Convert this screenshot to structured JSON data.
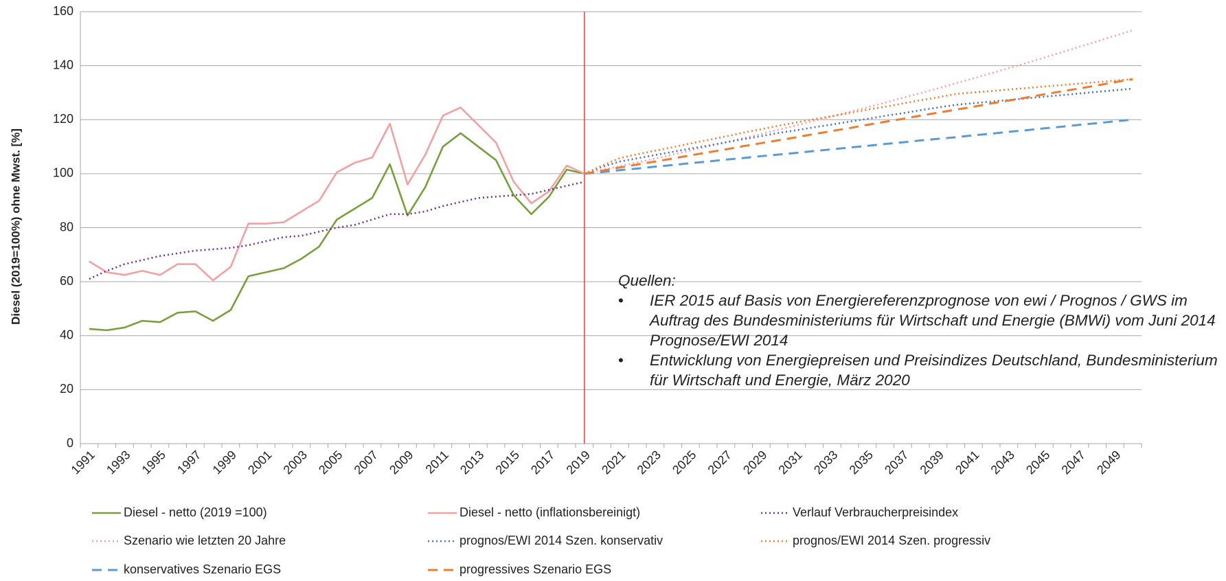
{
  "chart_data": {
    "type": "line",
    "y_label": "Diesel (2019=100%) ohne Mwst. [%]",
    "categories": [
      "1991",
      null,
      "1993",
      null,
      "1995",
      null,
      "1997",
      null,
      "1999",
      null,
      "2001",
      null,
      "2003",
      null,
      "2005",
      null,
      "2007",
      null,
      "2009",
      null,
      "2011",
      null,
      "2013",
      null,
      "2015",
      null,
      "2017",
      null,
      "2019",
      null,
      "2021",
      null,
      "2023",
      null,
      "2025",
      null,
      "2027",
      null,
      "2029",
      null,
      "2031",
      null,
      "2033",
      null,
      "2035",
      null,
      "2037",
      null,
      "2039",
      null,
      "2041",
      null,
      "2043",
      null,
      "2045",
      null,
      "2047",
      null,
      "2049",
      null
    ],
    "ylim": [
      0,
      160
    ],
    "yticks": [
      0,
      20,
      40,
      60,
      80,
      100,
      120,
      140,
      160
    ],
    "grid": true,
    "legend": "bottom",
    "marker_line": {
      "category": "2019",
      "color": "#e8413c"
    },
    "series": [
      {
        "name": "Diesel - netto (2019 =100)",
        "color": "#77a03c",
        "style": "solid",
        "values": [
          42.5,
          42,
          43,
          45.5,
          45,
          48.5,
          49,
          45.5,
          49.5,
          62,
          63.5,
          65,
          68.5,
          73,
          83,
          87,
          91,
          103.5,
          84.5,
          95,
          110,
          115,
          110,
          105,
          92,
          85,
          91.5,
          101.5,
          100,
          null,
          null,
          null,
          null,
          null,
          null,
          null,
          null,
          null,
          null,
          null,
          null,
          null,
          null,
          null,
          null,
          null,
          null,
          null,
          null,
          null,
          null,
          null,
          null,
          null,
          null,
          null,
          null,
          null,
          null,
          null
        ]
      },
      {
        "name": "Diesel - netto (inflationsbereinigt)",
        "color": "#f4a0a0",
        "style": "solid",
        "values": [
          67.5,
          63.5,
          62.5,
          64,
          62.5,
          66.5,
          66.5,
          60.5,
          65.5,
          81.5,
          81.5,
          82,
          86,
          90,
          100.5,
          104,
          106,
          118.5,
          96,
          107,
          121.5,
          124.5,
          118,
          111.5,
          97,
          89,
          93.5,
          103,
          100,
          null,
          null,
          null,
          null,
          null,
          null,
          null,
          null,
          null,
          null,
          null,
          null,
          null,
          null,
          null,
          null,
          null,
          null,
          null,
          null,
          null,
          null,
          null,
          null,
          null,
          null,
          null,
          null,
          null,
          null,
          null
        ]
      },
      {
        "name": "Verlauf Verbraucherpreisindex",
        "color": "#7030a0",
        "style": "dotted",
        "values": [
          61,
          64,
          66.5,
          68,
          69.5,
          70.5,
          71.5,
          72,
          72.5,
          73.5,
          75,
          76.5,
          77,
          78.5,
          80,
          81,
          83,
          85,
          85,
          86,
          88,
          89.5,
          91,
          91.5,
          92,
          92.5,
          94,
          95.5,
          97,
          null,
          null,
          null,
          null,
          null,
          null,
          null,
          null,
          null,
          null,
          null,
          null,
          null,
          null,
          null,
          null,
          null,
          null,
          null,
          null,
          null,
          null,
          null,
          null,
          null,
          null,
          null,
          null,
          null,
          null,
          null
        ]
      },
      {
        "name": "Szenario wie letzten 20 Jahre",
        "color": "#f4a0a0",
        "style": "dotted",
        "values": [
          null,
          null,
          null,
          null,
          null,
          null,
          null,
          null,
          null,
          null,
          null,
          null,
          null,
          null,
          null,
          null,
          null,
          null,
          null,
          null,
          null,
          null,
          null,
          null,
          null,
          null,
          null,
          null,
          100,
          101.4,
          102.8,
          104.2,
          105.6,
          107.1,
          108.6,
          110.1,
          111.6,
          113.2,
          114.7,
          116.3,
          117.9,
          119.6,
          121.2,
          122.9,
          124.6,
          126.3,
          128.1,
          129.8,
          131.6,
          133.5,
          135.3,
          137.2,
          139.1,
          141.0,
          143.0,
          145.0,
          147.0,
          149.0,
          151.1,
          153.1
        ]
      },
      {
        "name": "prognos/EWI 2014 Szen. konservativ",
        "color": "#4472c4",
        "style": "dotted",
        "values": [
          null,
          null,
          null,
          null,
          null,
          null,
          null,
          null,
          null,
          null,
          null,
          null,
          null,
          null,
          null,
          null,
          null,
          null,
          null,
          null,
          null,
          null,
          null,
          null,
          null,
          null,
          null,
          null,
          100,
          102.5,
          104.5,
          105.7,
          106.9,
          108.1,
          109.3,
          110.4,
          111.6,
          112.8,
          113.9,
          115.1,
          116.1,
          117.2,
          118.2,
          119.3,
          120.3,
          121.4,
          122.4,
          123.5,
          124.5,
          125.5,
          126.1,
          126.7,
          127.3,
          127.9,
          128.5,
          129.1,
          129.7,
          130.3,
          130.9,
          131.5
        ]
      },
      {
        "name": "prognos/EWI 2014 Szen. progressiv",
        "color": "#ed7d31",
        "style": "dotted",
        "values": [
          null,
          null,
          null,
          null,
          null,
          null,
          null,
          null,
          null,
          null,
          null,
          null,
          null,
          null,
          null,
          null,
          null,
          null,
          null,
          null,
          null,
          null,
          null,
          null,
          null,
          null,
          null,
          null,
          100,
          103,
          105.8,
          107.2,
          108.5,
          109.8,
          111.2,
          112.5,
          113.8,
          115.2,
          116.5,
          117.8,
          119.0,
          120.2,
          121.3,
          122.5,
          123.7,
          124.8,
          126.0,
          127.2,
          128.3,
          129.5,
          130.1,
          130.6,
          131.2,
          131.7,
          132.3,
          132.8,
          133.4,
          133.9,
          134.5,
          135.0
        ]
      },
      {
        "name": "konservatives Szenario EGS",
        "color": "#5b9bd5",
        "style": "dashed",
        "values": [
          null,
          null,
          null,
          null,
          null,
          null,
          null,
          null,
          null,
          null,
          null,
          null,
          null,
          null,
          null,
          null,
          null,
          null,
          null,
          null,
          null,
          null,
          null,
          null,
          null,
          null,
          null,
          null,
          100,
          100.6,
          101.3,
          101.9,
          102.6,
          103.2,
          103.9,
          104.5,
          105.2,
          105.8,
          106.5,
          107.1,
          107.7,
          108.4,
          109.0,
          109.7,
          110.3,
          111.0,
          111.6,
          112.3,
          112.9,
          113.5,
          114.2,
          114.8,
          115.5,
          116.1,
          116.8,
          117.4,
          118.1,
          118.7,
          119.4,
          120.0
        ]
      },
      {
        "name": "progressives Szenario EGS",
        "color": "#ed7d31",
        "style": "dashed",
        "values": [
          null,
          null,
          null,
          null,
          null,
          null,
          null,
          null,
          null,
          null,
          null,
          null,
          null,
          null,
          null,
          null,
          null,
          null,
          null,
          null,
          null,
          null,
          null,
          null,
          null,
          null,
          null,
          null,
          100,
          101.1,
          102.3,
          103.4,
          104.5,
          105.6,
          106.8,
          107.9,
          109.0,
          110.2,
          111.3,
          112.4,
          113.5,
          114.7,
          115.8,
          116.9,
          118.1,
          119.2,
          120.3,
          121.5,
          122.6,
          123.7,
          124.8,
          126.0,
          127.1,
          128.2,
          129.4,
          130.5,
          131.6,
          132.7,
          133.9,
          135.0
        ]
      }
    ],
    "annotation": {
      "title": "Quellen:",
      "items": [
        "IER 2015 auf Basis von Energiereferenzprognose von ewi / Prognos / GWS im Auftrag des Bundesministeriums für Wirtschaft und Energie (BMWi) vom Juni 2014 Prognose/EWI 2014",
        "Entwicklung von Energiepreisen und Preisindizes Deutschland, Bundesministerium für Wirtschaft und Energie, März 2020"
      ]
    }
  }
}
